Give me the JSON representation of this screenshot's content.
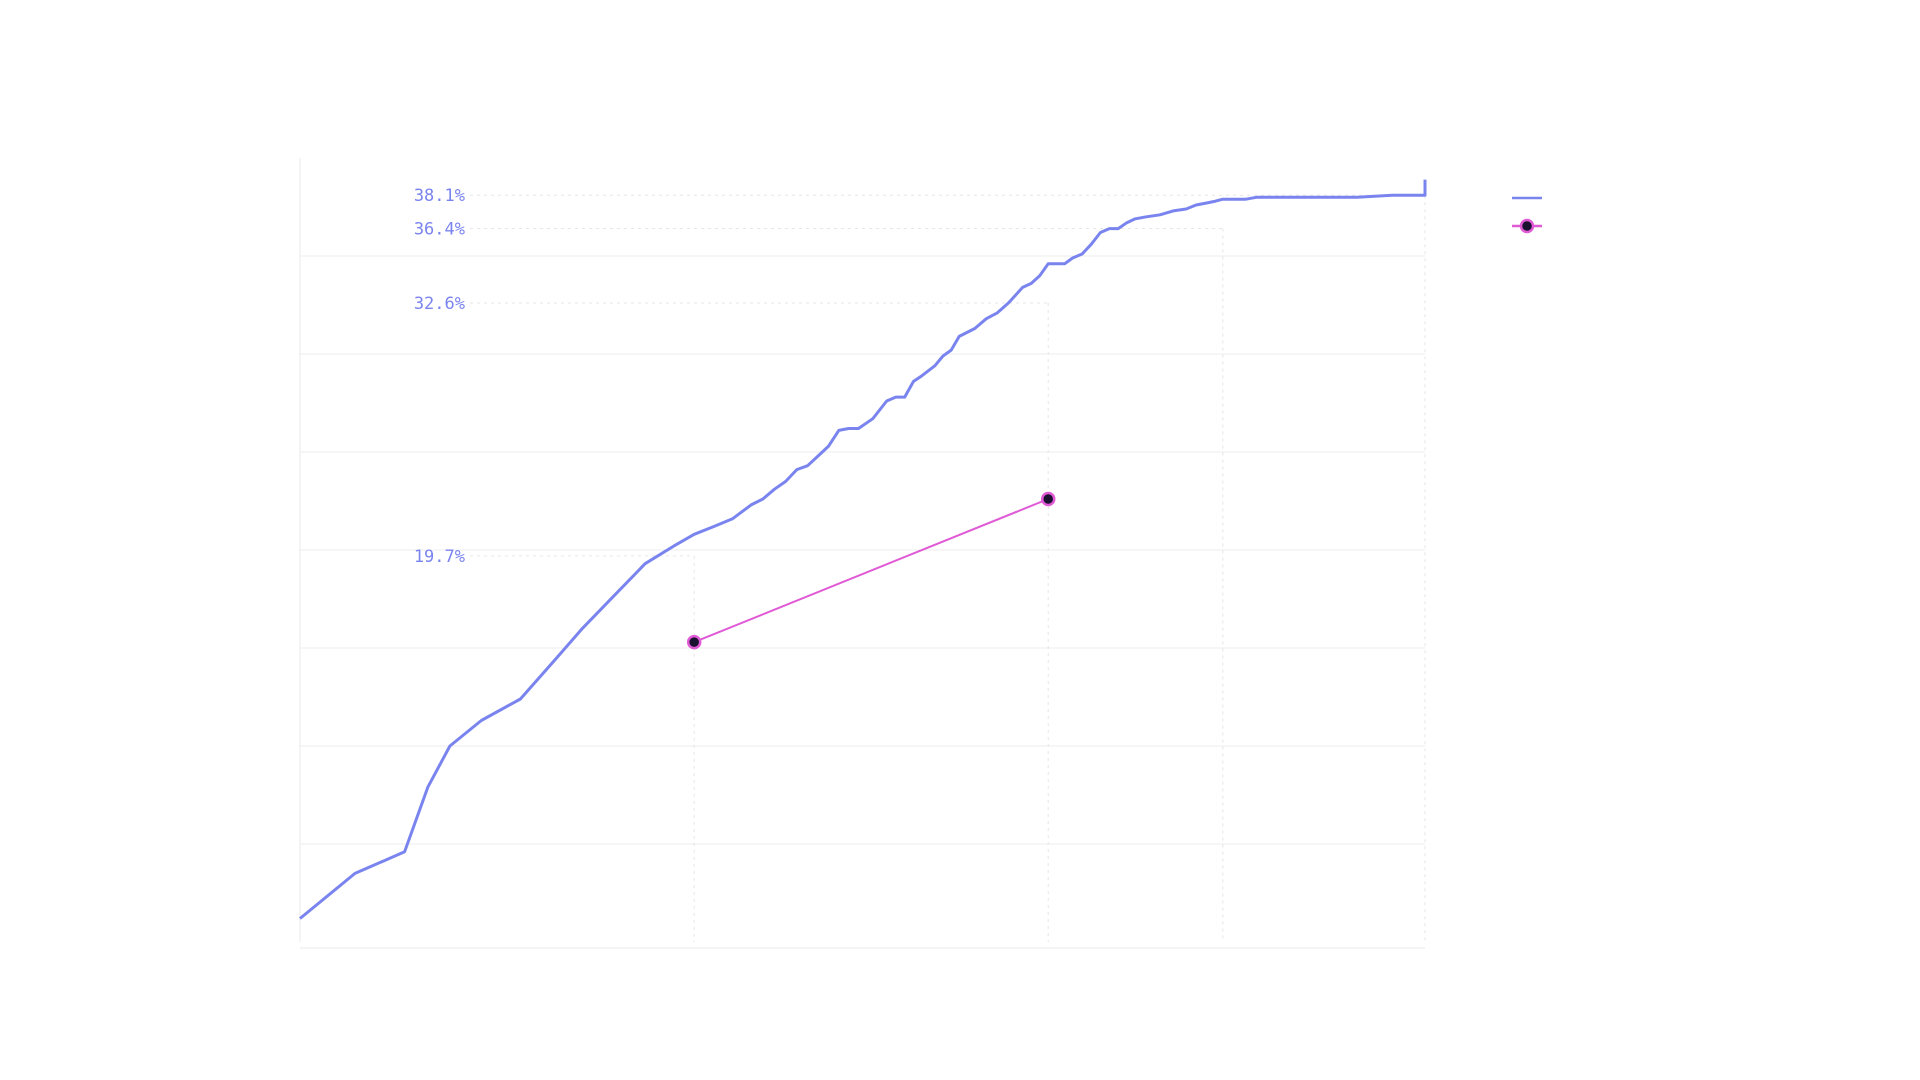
{
  "chart_data": {
    "type": "line",
    "title": "",
    "xlabel": "",
    "ylabel": "",
    "x_scale": "log",
    "xlim": [
      0.7,
      6.4
    ],
    "ylim": [
      0,
      40
    ],
    "grid": true,
    "legend_position": "top-right",
    "series": [
      {
        "name": "",
        "color": "#7a84ee",
        "style": "line",
        "x": [
          0.7,
          0.78,
          0.86,
          0.9,
          0.94,
          1.0,
          1.08,
          1.16,
          1.22,
          1.3,
          1.38,
          1.46,
          1.52,
          1.58,
          1.64,
          1.7,
          1.74,
          1.78,
          1.82,
          1.86,
          1.9,
          1.94,
          1.98,
          2.02,
          2.06,
          2.1,
          2.16,
          2.22,
          2.26,
          2.3,
          2.34,
          2.38,
          2.44,
          2.48,
          2.52,
          2.56,
          2.6,
          2.64,
          2.7,
          2.76,
          2.82,
          2.86,
          2.9,
          2.95,
          3.0,
          3.05,
          3.1,
          3.15,
          3.2,
          3.26,
          3.32,
          3.38,
          3.44,
          3.5,
          3.56,
          3.62,
          3.7,
          3.8,
          3.9,
          4.0,
          4.08,
          4.16,
          4.24,
          4.3,
          4.4,
          4.5,
          4.6,
          4.7,
          4.8,
          5.0,
          5.3,
          5.6,
          6.0,
          6.4,
          6.4
        ],
        "y": [
          1.2,
          3.5,
          4.6,
          7.9,
          10.0,
          11.3,
          12.4,
          14.5,
          16.0,
          17.7,
          19.3,
          20.2,
          20.8,
          21.2,
          21.6,
          22.3,
          22.6,
          23.1,
          23.5,
          24.1,
          24.3,
          24.8,
          25.3,
          26.1,
          26.2,
          26.2,
          26.7,
          27.6,
          27.8,
          27.8,
          28.6,
          28.9,
          29.4,
          29.9,
          30.2,
          30.9,
          31.1,
          31.3,
          31.8,
          32.1,
          32.6,
          33.0,
          33.4,
          33.6,
          34.0,
          34.6,
          34.6,
          34.6,
          34.9,
          35.1,
          35.6,
          36.2,
          36.4,
          36.4,
          36.7,
          36.9,
          37.0,
          37.1,
          37.3,
          37.4,
          37.6,
          37.7,
          37.8,
          37.9,
          37.9,
          37.9,
          38.0,
          38.0,
          38.0,
          38.0,
          38.0,
          38.0,
          38.1,
          38.1,
          38.9
        ]
      },
      {
        "name": "",
        "color": "#e05ad6",
        "style": "line-markers",
        "x": [
          1.52,
          3.05
        ],
        "y": [
          15.3,
          22.6
        ]
      }
    ],
    "annotations": [
      {
        "label": "38.1%",
        "x": 6.4,
        "y": 38.1
      },
      {
        "label": "36.4%",
        "x": 4.3,
        "y": 36.4
      },
      {
        "label": "32.6%",
        "x": 3.05,
        "y": 32.6
      },
      {
        "label": "19.7%",
        "x": 1.52,
        "y": 19.7
      }
    ],
    "colors": {
      "primary_line": "#7a84ee",
      "secondary_line": "#e05ad6",
      "marker_fill": "#1a1030",
      "grid": "#ececec",
      "faint_text": "#d9d9d9"
    }
  }
}
